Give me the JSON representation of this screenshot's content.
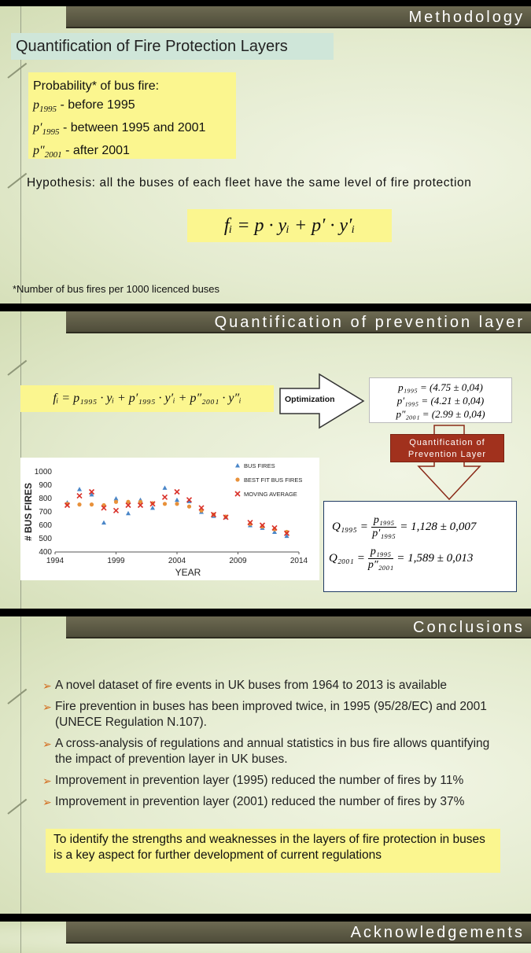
{
  "slide1": {
    "header": "Methodology",
    "heading": "Quantification of Fire Protection Layers",
    "probability_title": "Probability* of bus fire:",
    "p_lines": [
      {
        "sym": "p",
        "sub": "1995",
        "prime": "",
        "text": " - before 1995"
      },
      {
        "sym": "p",
        "sub": "1995",
        "prime": "′",
        "text": " - between 1995 and 2001"
      },
      {
        "sym": "p",
        "sub": "2001",
        "prime": "″",
        "text": " - after 2001"
      }
    ],
    "hypothesis": "Hypothesis: all the buses of each fleet have the same level of fire protection",
    "formula": "fᵢ = p · yᵢ + p′ · y′ᵢ",
    "footnote": "*Number of bus fires per 1000 licenced buses"
  },
  "slide2": {
    "header": "Quantification of prevention layer",
    "formula": "fᵢ = p₁₉₉₅ · yᵢ + p′₁₉₉₅ · y′ᵢ + p″₂₀₀₁ · y″ᵢ",
    "optimization_label": "Optimization",
    "results": [
      "p₁₉₉₅ = (4.75 ± 0,04)",
      "p′₁₉₉₅ = (4.21 ± 0,04)",
      "p″₂₀₀₁ = (2.99 ± 0,04)"
    ],
    "quant_label_1": "Quantification of",
    "quant_label_2": "Prevention Layer",
    "q_results": [
      {
        "lhs": "Q₁₉₉₅",
        "num": "p₁₉₉₅",
        "den": "p′₁₉₉₅",
        "rhs": "= 1,128 ± 0,007"
      },
      {
        "lhs": "Q₂₀₀₁",
        "num": "p₁₉₉₅",
        "den": "p″₂₀₀₁",
        "rhs": "= 1,589 ± 0,013"
      }
    ]
  },
  "chart_data": {
    "type": "scatter",
    "xlabel": "YEAR",
    "ylabel": "# BUS FIRES",
    "xlim": [
      1994,
      2014
    ],
    "ylim": [
      400,
      1000
    ],
    "xticks": [
      1994,
      1999,
      2004,
      2009,
      2014
    ],
    "yticks": [
      400,
      500,
      600,
      700,
      800,
      900,
      1000
    ],
    "legend_position": "top-right",
    "series": [
      {
        "name": "BUS FIRES",
        "marker": "triangle",
        "color": "#4a86c8",
        "points": [
          [
            1995,
            770
          ],
          [
            1996,
            870
          ],
          [
            1997,
            830
          ],
          [
            1998,
            620
          ],
          [
            1999,
            800
          ],
          [
            2000,
            690
          ],
          [
            2001,
            790
          ],
          [
            2002,
            730
          ],
          [
            2003,
            880
          ],
          [
            2004,
            790
          ],
          [
            2005,
            780
          ],
          [
            2006,
            700
          ],
          [
            2007,
            670
          ],
          [
            2008,
            660
          ],
          [
            2009,
            null
          ],
          [
            2010,
            600
          ],
          [
            2011,
            580
          ],
          [
            2012,
            550
          ],
          [
            2013,
            520
          ]
        ]
      },
      {
        "name": "BEST FIT BUS FIRES",
        "marker": "dot",
        "color": "#e8913a",
        "points": [
          [
            1995,
            760
          ],
          [
            1996,
            755
          ],
          [
            1997,
            755
          ],
          [
            1998,
            750
          ],
          [
            1999,
            775
          ],
          [
            2000,
            775
          ],
          [
            2001,
            775
          ],
          [
            2002,
            765
          ],
          [
            2003,
            760
          ],
          [
            2004,
            760
          ],
          [
            2005,
            740
          ],
          [
            2006,
            710
          ],
          [
            2007,
            680
          ],
          [
            2008,
            665
          ],
          [
            2010,
            610
          ],
          [
            2011,
            590
          ],
          [
            2012,
            570
          ],
          [
            2013,
            550
          ]
        ]
      },
      {
        "name": "MOVING AVERAGE",
        "marker": "cross",
        "color": "#d9312a",
        "points": [
          [
            1995,
            750
          ],
          [
            1996,
            820
          ],
          [
            1997,
            850
          ],
          [
            1998,
            730
          ],
          [
            1999,
            710
          ],
          [
            2000,
            750
          ],
          [
            2001,
            750
          ],
          [
            2002,
            760
          ],
          [
            2003,
            810
          ],
          [
            2004,
            850
          ],
          [
            2005,
            790
          ],
          [
            2006,
            730
          ],
          [
            2007,
            680
          ],
          [
            2008,
            660
          ],
          [
            2010,
            620
          ],
          [
            2011,
            600
          ],
          [
            2012,
            580
          ],
          [
            2013,
            540
          ]
        ]
      }
    ]
  },
  "slide3": {
    "header": "Conclusions",
    "bullets": [
      "A novel dataset of fire events in UK buses from 1964 to 2013 is available",
      "Fire prevention in buses has been improved twice, in 1995 (95/28/EC) and 2001 (UNECE Regulation N.107).",
      "A cross-analysis of regulations and annual statistics in bus fire allows quantifying the impact of prevention layer in UK buses.",
      "Improvement in prevention layer (1995) reduced the number of fires by 11%",
      "Improvement in prevention layer (2001) reduced the number of fires by 37%"
    ],
    "bullet_arrow": "➢",
    "summary": "To identify the strengths and weaknesses in the layers of fire protection in buses is a key aspect for further development of current regulations"
  },
  "slide4": {
    "header": "Acknowledgements"
  }
}
